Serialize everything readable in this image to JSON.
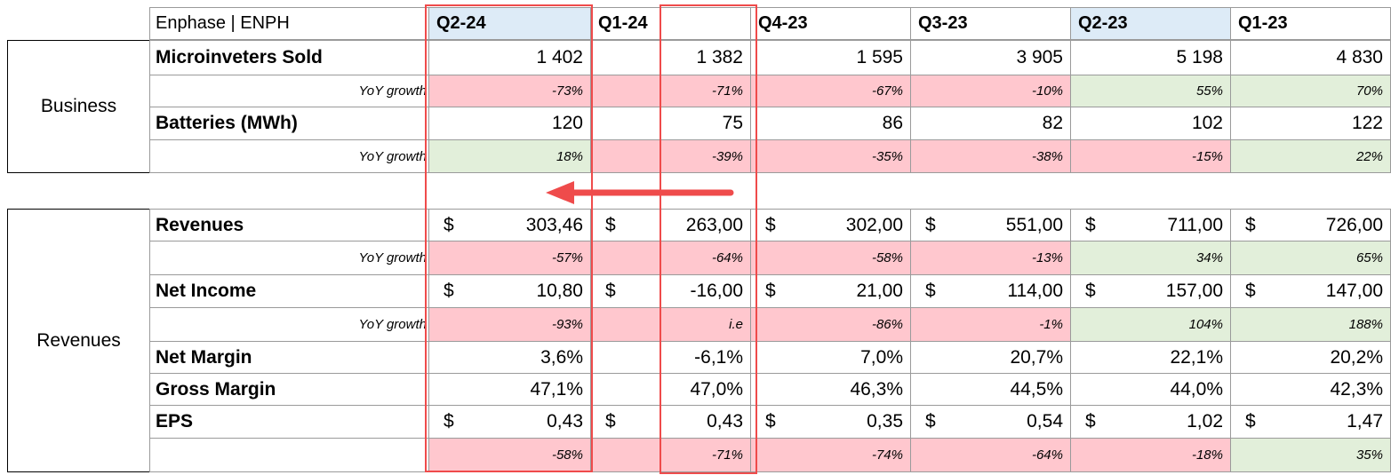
{
  "title": "Enphase | ENPH",
  "quarters": [
    {
      "label": "Q2-24",
      "highlight": true
    },
    {
      "label": "Q1-24",
      "highlight": false
    },
    {
      "label": "Q4-23",
      "highlight": false
    },
    {
      "label": "Q3-23",
      "highlight": false
    },
    {
      "label": "Q2-23",
      "highlight": true
    },
    {
      "label": "Q1-23",
      "highlight": false
    }
  ],
  "colors": {
    "negative_fill": "#ffc7ce",
    "positive_fill": "#e2efda",
    "header_highlight": "#ddebf7",
    "annotation": "#ef4b4b"
  },
  "sections": [
    {
      "label": "Business",
      "rows": [
        {
          "label": "Microinveters Sold",
          "type": "value",
          "values": [
            "1 402",
            "1 382",
            "1 595",
            "3 905",
            "5 198",
            "4 830"
          ]
        },
        {
          "label": "YoY growth",
          "type": "yoy",
          "values": [
            "-73%",
            "-71%",
            "-67%",
            "-10%",
            "55%",
            "70%"
          ],
          "tone": [
            "red",
            "red",
            "red",
            "red",
            "green",
            "green"
          ]
        },
        {
          "label": "Batteries (MWh)",
          "type": "value",
          "values": [
            "120",
            "75",
            "86",
            "82",
            "102",
            "122"
          ]
        },
        {
          "label": "YoY growth",
          "type": "yoy",
          "values": [
            "18%",
            "-39%",
            "-35%",
            "-38%",
            "-15%",
            "22%"
          ],
          "tone": [
            "green",
            "red",
            "red",
            "red",
            "red",
            "green"
          ]
        }
      ]
    },
    {
      "label": "Revenues",
      "rows": [
        {
          "label": "Revenues",
          "type": "dollar",
          "currency": "$",
          "values": [
            "303,46",
            "263,00",
            "302,00",
            "551,00",
            "711,00",
            "726,00"
          ]
        },
        {
          "label": "YoY growth",
          "type": "yoy",
          "values": [
            "-57%",
            "-64%",
            "-58%",
            "-13%",
            "34%",
            "65%"
          ],
          "tone": [
            "red",
            "red",
            "red",
            "red",
            "green",
            "green"
          ]
        },
        {
          "label": "Net Income",
          "type": "dollar",
          "currency": "$",
          "values": [
            "10,80",
            "-16,00",
            "21,00",
            "114,00",
            "157,00",
            "147,00"
          ]
        },
        {
          "label": "YoY growth",
          "type": "yoy",
          "values": [
            "-93%",
            "i.e",
            "-86%",
            "-1%",
            "104%",
            "188%"
          ],
          "tone": [
            "red",
            "red",
            "red",
            "red",
            "green",
            "green"
          ]
        },
        {
          "label": "Net Margin",
          "type": "value",
          "values": [
            "3,6%",
            "-6,1%",
            "7,0%",
            "20,7%",
            "22,1%",
            "20,2%"
          ]
        },
        {
          "label": "Gross Margin",
          "type": "value",
          "values": [
            "47,1%",
            "47,0%",
            "46,3%",
            "44,5%",
            "44,0%",
            "42,3%"
          ]
        },
        {
          "label": "EPS",
          "type": "dollar",
          "currency": "$",
          "values": [
            "0,43",
            "0,43",
            "0,35",
            "0,54",
            "1,02",
            "1,47"
          ]
        },
        {
          "label": "",
          "type": "yoy",
          "values": [
            "-58%",
            "-71%",
            "-74%",
            "-64%",
            "-18%",
            "35%"
          ],
          "tone": [
            "red",
            "red",
            "red",
            "red",
            "red",
            "green"
          ]
        }
      ]
    }
  ]
}
